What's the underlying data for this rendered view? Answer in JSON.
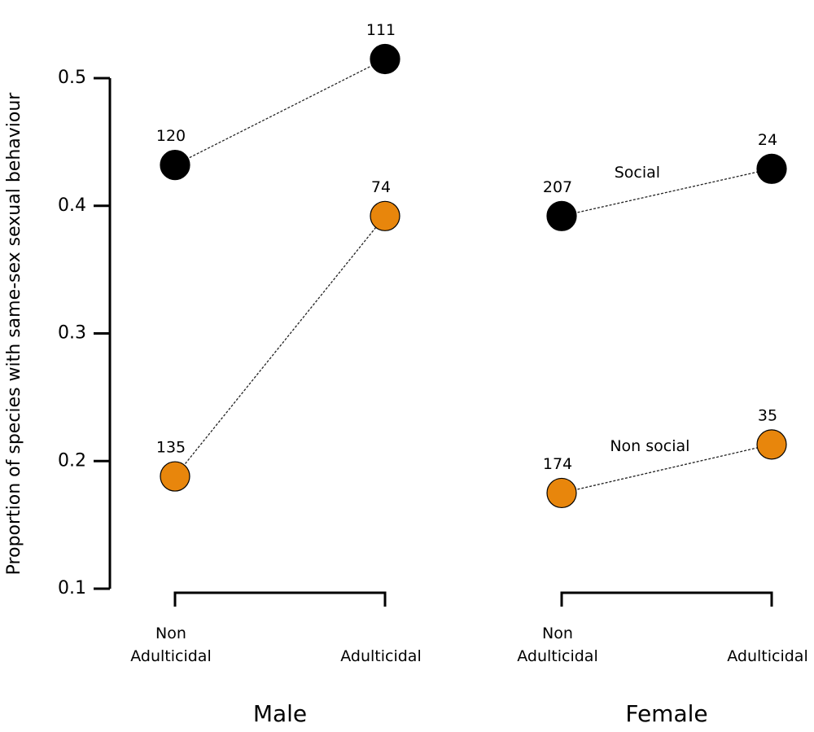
{
  "chart_data": {
    "type": "line",
    "ylabel": "Proportion of species with same-sex sexual behaviour",
    "ylim": [
      0.1,
      0.5
    ],
    "yticks": [
      0.1,
      0.2,
      0.3,
      0.4,
      0.5
    ],
    "groups": [
      "Male",
      "Female"
    ],
    "categories": [
      "Non Adulticidal",
      "Adulticidal"
    ],
    "series": [
      {
        "name": "Social",
        "color": "#000000",
        "values": [
          [
            0.432,
            0.515
          ],
          [
            0.392,
            0.429
          ]
        ],
        "sample_sizes": [
          [
            120,
            111
          ],
          [
            207,
            24
          ]
        ]
      },
      {
        "name": "Non social",
        "color": "#e8860c",
        "values": [
          [
            0.188,
            0.392
          ],
          [
            0.175,
            0.213
          ]
        ],
        "sample_sizes": [
          [
            135,
            74
          ],
          [
            174,
            35
          ]
        ]
      }
    ]
  }
}
